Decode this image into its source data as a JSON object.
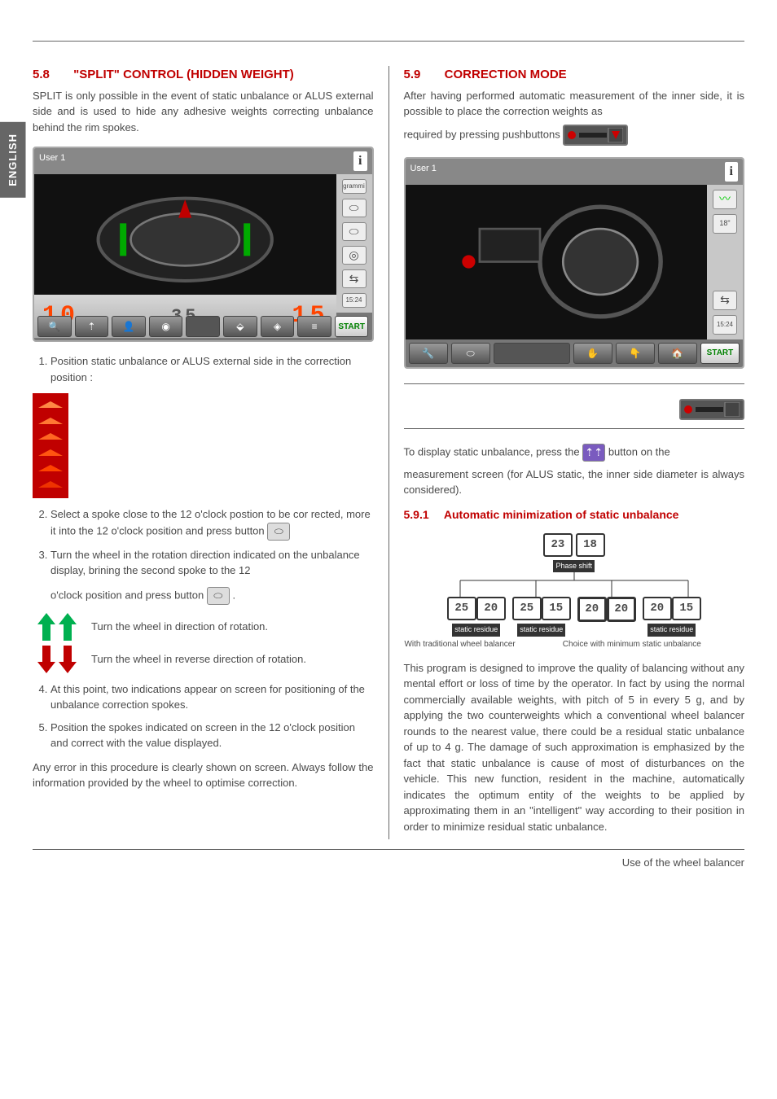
{
  "lang_tab": "ENGLISH",
  "footer": "Use of the wheel balancer",
  "left": {
    "sec_num": "5.8",
    "sec_title": "\"SPLIT\" CONTROL (HIDDEN WEIGHT)",
    "intro": "SPLIT is only possible in the event of static unbalance or ALUS external side and is used to hide any adhesive weights correcting unbalance behind the rim spokes.",
    "screen": {
      "user": "User 1",
      "left_val": "10",
      "mid_val": "35",
      "right_val": "15",
      "unit_label": "grammi",
      "time": "15:24",
      "start": "START"
    },
    "step1": "Position static unbalance or ALUS external side in the correction position :",
    "step2": "Select a spoke close to the 12 o'clock postion to be cor rected, more it into the 12 o'clock position and press button",
    "step3a": "Turn the wheel in the rotation direction indicated on the unbalance display, brining the second spoke to the 12",
    "step3b": "o'clock position and press button",
    "dir1": "Turn the wheel in direction of rotation.",
    "dir2": "Turn the wheel in reverse direction of rotation.",
    "step4": "At this point, two indications appear on screen for positioning of the unbalance correction spokes.",
    "step5": "Position the spokes indicated on screen in the 12 o'clock position and correct with the value displayed.",
    "closing": "Any error in this procedure is clearly shown on screen. Always follow the information provided by the wheel to optimise correction."
  },
  "right": {
    "sec_num": "5.9",
    "sec_title": "CORRECTION MODE",
    "intro1": "After having performed automatic measurement of the inner side, it is possible to place the correction weights as",
    "intro2": "required by pressing pushbuttons",
    "screen": {
      "user": "User 1",
      "start": "START",
      "time": "15:24"
    },
    "static_text_a": "To display static unbalance, press the",
    "static_text_b": "button on the",
    "static_text_c": "measurement screen (for ALUS static, the inner side diameter is always considered).",
    "sub_num": "5.9.1",
    "sub_title": "Automatic minimization of static unbalance",
    "diagram": {
      "top_a": "23",
      "top_b": "18",
      "top_label": "Phase shift",
      "rows": [
        {
          "a": "25",
          "b": "20",
          "label": "static residue",
          "cap": "With traditional wheel balancer"
        },
        {
          "a": "25",
          "b": "15",
          "label": "static residue",
          "cap": ""
        },
        {
          "a": "20",
          "b": "20",
          "label": "",
          "cap": "Choice with minimum static unbalance"
        },
        {
          "a": "20",
          "b": "15",
          "label": "static residue",
          "cap": ""
        }
      ]
    },
    "body": "This program is designed to improve the quality of balancing without any mental effort or loss of time by the operator. In fact by using the normal commercially available weights, with pitch of 5 in every 5 g, and by applying the two counterweights which a conventional wheel balancer rounds to the nearest value, there could be a residual static unbalance of up to 4 g. The damage of such approximation is emphasized by the fact that static unbalance is cause of most of disturbances on the vehicle. This new function, resident in the machine, automatically indicates the optimum entity of the weights to be applied by approximating them in an \"intelligent\" way according to their position in order to minimize residual static unbalance."
  },
  "colors": {
    "accent": "#c00000",
    "digits": "#ff4400",
    "green_arrow": "#00b050",
    "red_arrow": "#c00000"
  }
}
